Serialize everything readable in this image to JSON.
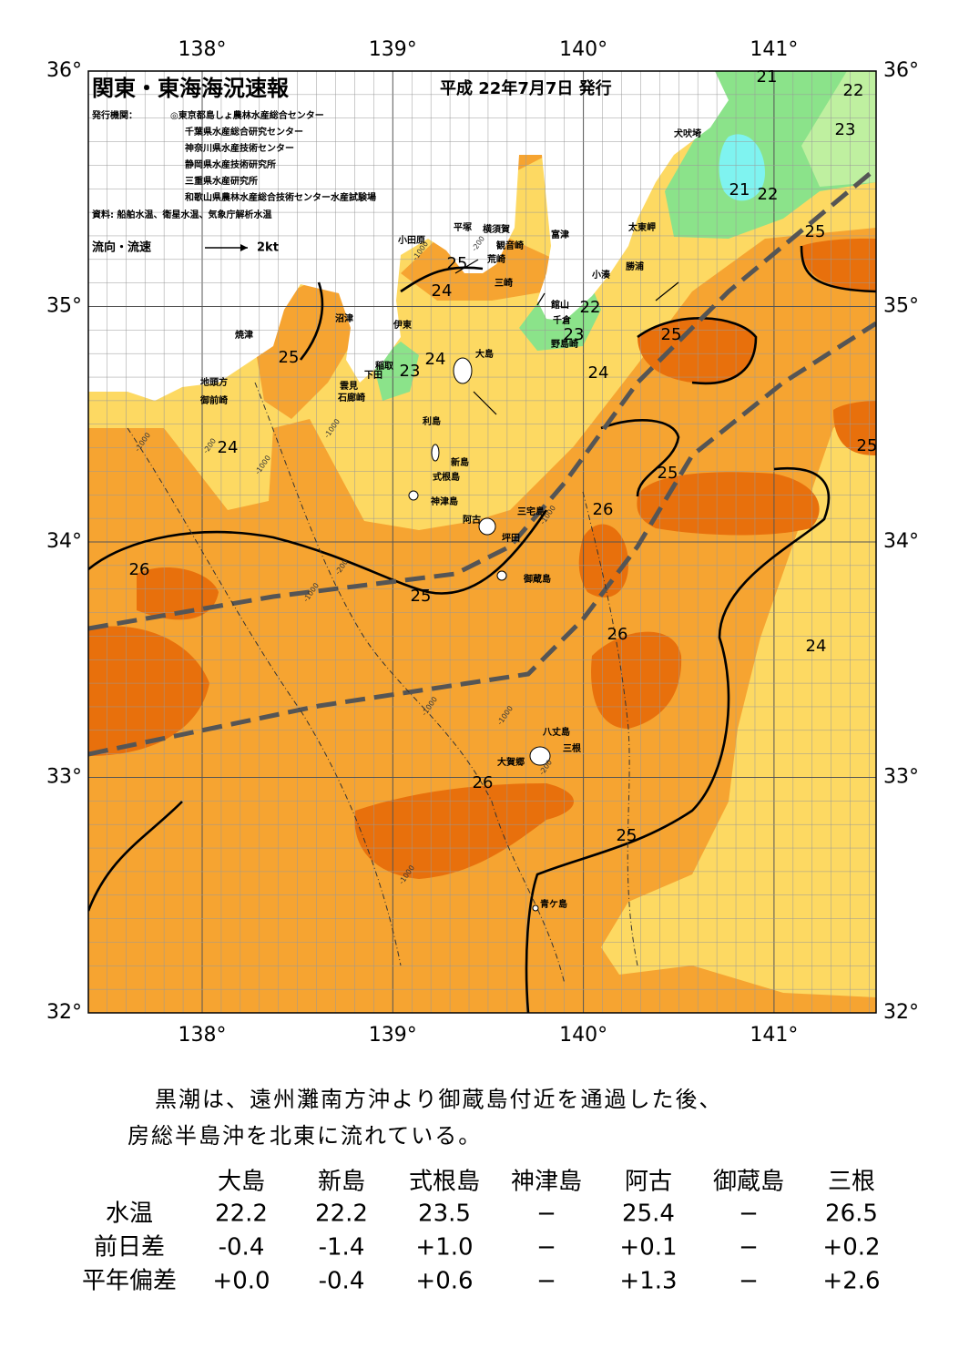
{
  "map": {
    "title": "関東・東海海況速報",
    "date": "平成 22年7月7日 発行",
    "publisher_label": "発行機関：",
    "publishers": [
      "◎東京都島しょ農林水産総合センター",
      "千葉県水産総合研究センター",
      "神奈川県水産技術センター",
      "静岡県水産技術研究所",
      "三重県水産研究所",
      "和歌山県農林水産総合技術センター水産試験場"
    ],
    "source": "資料: 船舶水温、衛星水温、気象庁解析水温",
    "legend": "流向・流速",
    "legend_scale": "2kt",
    "lon_labels": [
      "138°",
      "139°",
      "140°",
      "141°"
    ],
    "lat_labels": [
      "36°",
      "35°",
      "34°",
      "33°",
      "32°"
    ],
    "place_names": [
      "犬吠埼",
      "太東岬",
      "勝浦",
      "小湊",
      "富津",
      "館山",
      "千倉",
      "野島崎",
      "横須賀",
      "観音崎",
      "荒崎",
      "三崎",
      "平塚",
      "小田原",
      "沼津",
      "伊東",
      "焼津",
      "大島",
      "稲取",
      "下田",
      "雲見",
      "石廊崎",
      "地頭方",
      "御前崎",
      "利島",
      "新島",
      "式根島",
      "神津島",
      "三宅島",
      "阿古",
      "坪田",
      "御蔵島",
      "八丈島",
      "三根",
      "大賀郷",
      "青ケ島"
    ],
    "contour_labels": [
      21,
      22,
      23,
      21,
      22,
      25,
      25,
      24,
      22,
      23,
      25,
      25,
      24,
      23,
      24,
      24,
      25,
      25,
      26,
      26,
      25,
      26,
      24,
      26,
      25
    ],
    "depth_labels": [
      -1000,
      -200,
      -1000,
      -200,
      -1000,
      -1000,
      -200,
      -1000,
      -1000,
      -1000,
      -1000,
      -1000,
      -200
    ]
  },
  "summary": [
    "黒潮は、遠州灘南方沖より御蔵島付近を通過した後、",
    "房総半島沖を北東に流れている。"
  ],
  "table": {
    "columns": [
      "大島",
      "新島",
      "式根島",
      "神津島",
      "阿古",
      "御蔵島",
      "三根"
    ],
    "rows": [
      {
        "label": "水温",
        "values": [
          "22.2",
          "22.2",
          "23.5",
          "−",
          "25.4",
          "−",
          "26.5"
        ]
      },
      {
        "label": "前日差",
        "values": [
          "-0.4",
          "-1.4",
          "+1.0",
          "−",
          "+0.1",
          "−",
          "+0.2"
        ]
      },
      {
        "label": "平年偏差",
        "values": [
          "+0.0",
          "-0.4",
          "+0.6",
          "−",
          "+1.3",
          "−",
          "+2.6"
        ]
      }
    ]
  }
}
